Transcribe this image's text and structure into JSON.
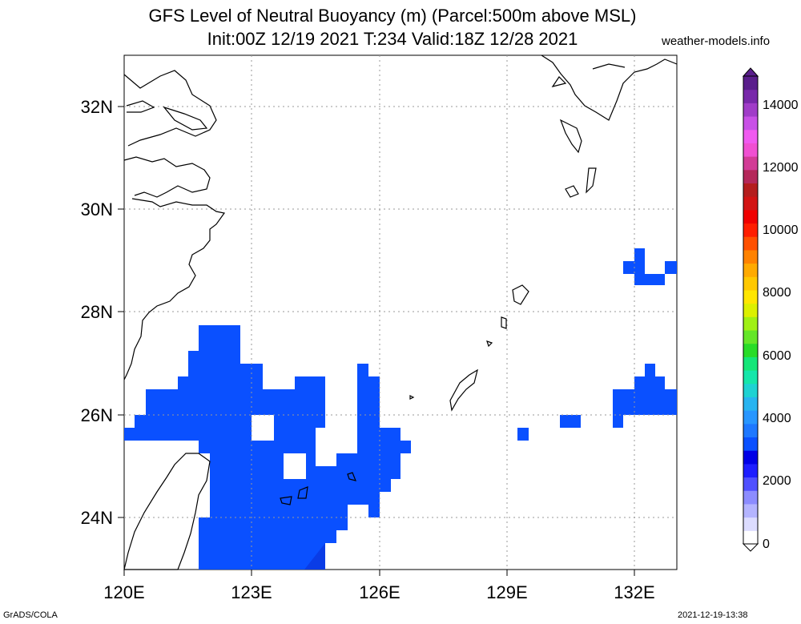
{
  "title": {
    "line1": "GFS Level of Neutral Buoyancy (m) (Parcel:500m above MSL)",
    "line2": "Init:00Z 12/19 2021 T:234 Valid:18Z 12/28 2021"
  },
  "site_label": "weather-models.info",
  "footer": {
    "left": "GrADS/COLA",
    "right": "2021-12-19-13:38"
  },
  "map": {
    "lon_range": [
      120,
      133
    ],
    "lat_range": [
      23,
      33
    ],
    "lon_ticks": [
      "120E",
      "123E",
      "126E",
      "129E",
      "132E"
    ],
    "lat_ticks": [
      "24N",
      "26N",
      "28N",
      "30N",
      "32N"
    ],
    "fill_color": "#0a50ff",
    "dark_fill_color": "#0a3ce6",
    "coast_color": "#000000",
    "grid_color": "#999999"
  },
  "colorbar": {
    "labels": [
      "0",
      "2000",
      "4000",
      "6000",
      "8000",
      "10000",
      "12000",
      "14000"
    ],
    "colors": [
      "#ffffff",
      "#dcdcff",
      "#b4b4ff",
      "#8c8cff",
      "#5050ff",
      "#1e1eff",
      "#0000e6",
      "#0a50ff",
      "#1e78ff",
      "#2896ff",
      "#28b4f0",
      "#1ed2d2",
      "#14e6aa",
      "#14e678",
      "#28dc28",
      "#64e628",
      "#a0f014",
      "#dcf000",
      "#ffe600",
      "#ffc800",
      "#ffaa00",
      "#ff8200",
      "#ff5000",
      "#ff1e00",
      "#f00000",
      "#d21414",
      "#b41e1e",
      "#b4285a",
      "#d23c96",
      "#f050d2",
      "#f05af0",
      "#c850e6",
      "#a03cc8",
      "#7828aa",
      "#5a1e8c"
    ]
  },
  "regions": {
    "taiwan": "Taiwan coastline",
    "china": "China coastline",
    "okinawa": "Ryukyu Islands",
    "kyushu": "Kyushu coastline"
  }
}
